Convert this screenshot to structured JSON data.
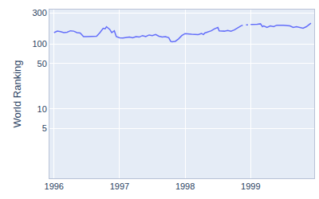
{
  "chart_data": {
    "type": "line",
    "y_label": "World Ranking",
    "log": "y",
    "grid": true,
    "color": "#636efa",
    "line_style": "solid",
    "x": [
      1996.0,
      1996.05,
      1996.1,
      1996.15,
      1996.2,
      1996.25,
      1996.3,
      1996.35,
      1996.4,
      1996.45,
      1996.5,
      1996.55,
      1996.6,
      1996.65,
      1996.7,
      1996.75,
      1996.78,
      1996.8,
      1996.85,
      1996.88,
      1996.9,
      1996.92,
      1996.95,
      1997.0,
      1997.05,
      1997.1,
      1997.15,
      1997.2,
      1997.25,
      1997.3,
      1997.35,
      1997.4,
      1997.45,
      1997.5,
      1997.55,
      1997.6,
      1997.65,
      1997.7,
      1997.75,
      1997.78,
      1997.8,
      1997.85,
      1997.9,
      1997.95,
      1998.0,
      1998.1,
      1998.2,
      1998.25,
      1998.28,
      1998.3,
      1998.35,
      1998.4,
      1998.45,
      1998.5,
      1998.52,
      1998.6,
      1998.65,
      1998.7,
      1998.75,
      1998.8,
      1998.85,
      1998.88,
      1998.9,
      1998.93,
      1998.96,
      1998.98,
      1999.0,
      1999.05,
      1999.1,
      1999.15,
      1999.18,
      1999.2,
      1999.25,
      1999.3,
      1999.35,
      1999.4,
      1999.5,
      1999.6,
      1999.65,
      1999.7,
      1999.75,
      1999.8,
      1999.85,
      1999.88,
      1999.92
    ],
    "values": [
      150,
      158,
      155,
      150,
      152,
      160,
      158,
      150,
      148,
      130,
      130,
      131,
      130,
      132,
      150,
      175,
      172,
      185,
      168,
      150,
      155,
      160,
      130,
      125,
      124,
      126,
      128,
      125,
      130,
      128,
      135,
      130,
      138,
      135,
      140,
      132,
      128,
      130,
      125,
      110,
      108,
      110,
      120,
      135,
      145,
      142,
      140,
      145,
      140,
      148,
      155,
      160,
      172,
      180,
      160,
      158,
      162,
      158,
      165,
      178,
      190,
      195,
      null,
      198,
      197,
      null,
      200,
      200,
      202,
      205,
      185,
      190,
      180,
      190,
      185,
      195,
      195,
      190,
      180,
      185,
      178,
      175,
      185,
      195,
      210
    ],
    "xlim": [
      1995.93,
      1999.97
    ],
    "xticks": [
      1996,
      1997,
      1998,
      1999
    ],
    "ylim": [
      0.85,
      340
    ],
    "yticks": [
      5,
      10,
      50,
      100,
      300
    ]
  }
}
